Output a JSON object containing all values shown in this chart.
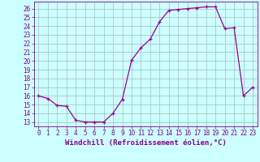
{
  "x": [
    0,
    1,
    2,
    3,
    4,
    5,
    6,
    7,
    8,
    9,
    10,
    11,
    12,
    13,
    14,
    15,
    16,
    17,
    18,
    19,
    20,
    21,
    22,
    23
  ],
  "y": [
    16.0,
    15.7,
    14.9,
    14.8,
    13.2,
    13.0,
    13.0,
    13.0,
    14.0,
    15.6,
    20.1,
    21.5,
    22.5,
    24.5,
    25.8,
    25.9,
    26.0,
    26.1,
    26.2,
    26.2,
    23.7,
    23.8,
    16.0,
    17.0
  ],
  "line_color": "#990099",
  "marker": "+",
  "bg_color": "#ccffff",
  "grid_color": "#aabbbb",
  "xlabel": "Windchill (Refroidissement éolien,°C)",
  "xlim": [
    -0.5,
    23.5
  ],
  "ylim": [
    12.5,
    26.8
  ],
  "yticks": [
    13,
    14,
    15,
    16,
    17,
    18,
    19,
    20,
    21,
    22,
    23,
    24,
    25,
    26
  ],
  "xticks": [
    0,
    1,
    2,
    3,
    4,
    5,
    6,
    7,
    8,
    9,
    10,
    11,
    12,
    13,
    14,
    15,
    16,
    17,
    18,
    19,
    20,
    21,
    22,
    23
  ],
  "font_color": "#880088",
  "tick_fontsize": 5.5,
  "label_fontsize": 6.5,
  "linewidth": 0.9,
  "markersize": 3,
  "markeredgewidth": 0.9
}
